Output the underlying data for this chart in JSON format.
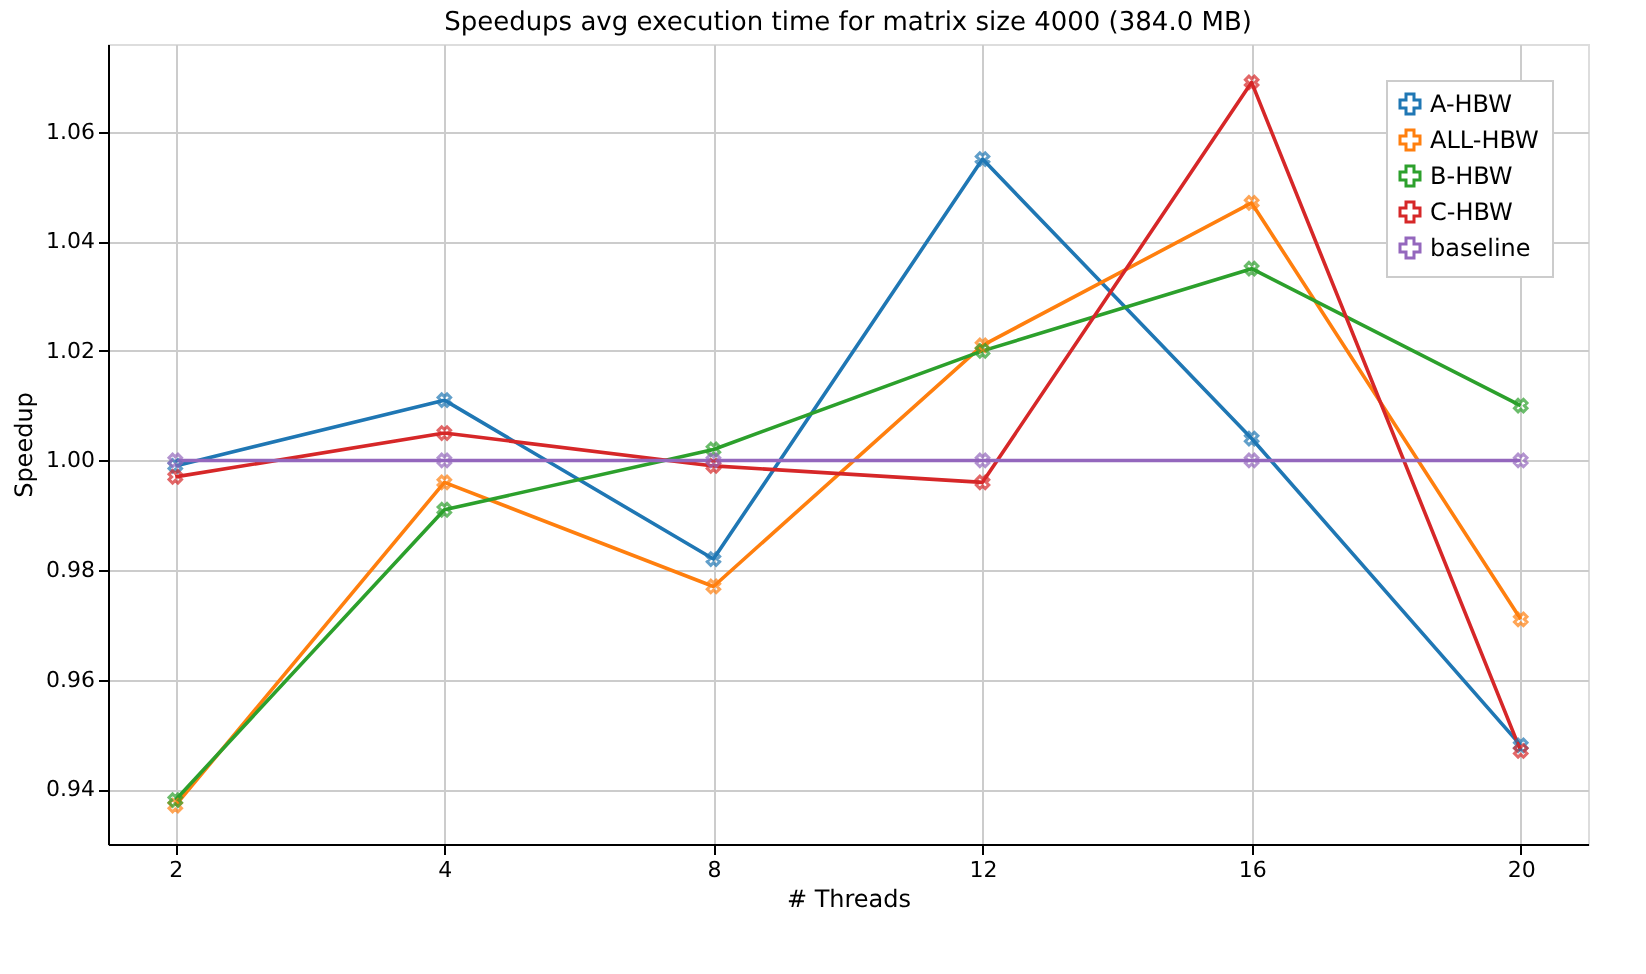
{
  "chart_data": {
    "type": "line",
    "title": "Speedups avg execution time for matrix size 4000 (384.0 MB)",
    "xlabel": "# Threads",
    "ylabel": "Speedup",
    "categories": [
      "2",
      "4",
      "8",
      "12",
      "16",
      "20"
    ],
    "series": [
      {
        "name": "A-HBW",
        "color": "#1f77b4",
        "values": [
          0.999,
          1.011,
          0.982,
          1.055,
          1.004,
          0.948
        ]
      },
      {
        "name": "ALL-HBW",
        "color": "#ff7f0e",
        "values": [
          0.937,
          0.996,
          0.977,
          1.021,
          1.047,
          0.971
        ]
      },
      {
        "name": "B-HBW",
        "color": "#2ca02c",
        "values": [
          0.938,
          0.991,
          1.002,
          1.02,
          1.035,
          1.01
        ]
      },
      {
        "name": "C-HBW",
        "color": "#d62728",
        "values": [
          0.997,
          1.005,
          0.999,
          0.996,
          1.069,
          0.947
        ]
      },
      {
        "name": "baseline",
        "color": "#9467bd",
        "values": [
          1.0,
          1.0,
          1.0,
          1.0,
          1.0,
          1.0
        ]
      }
    ],
    "ylim": [
      0.93,
      1.076
    ],
    "yticks": [
      0.94,
      0.96,
      0.98,
      {
        "value": 1.0,
        "label": "1.00"
      },
      1.02,
      1.04,
      1.06
    ],
    "grid": true,
    "legend": "top right",
    "marker": "cross",
    "line_style": "solid"
  }
}
